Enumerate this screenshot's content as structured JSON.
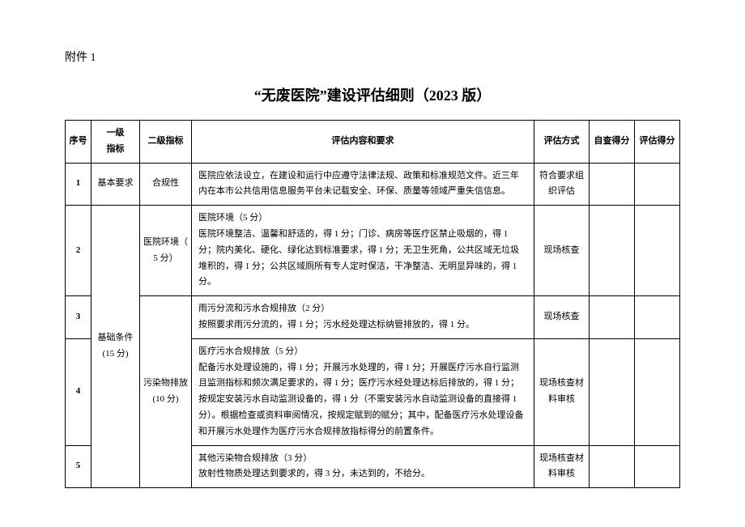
{
  "attachment_label": "附件 1",
  "doc_title": "“无废医院”建设评估细则（2023 版）",
  "headers": {
    "seq": "序号",
    "lvl1": "一级\n指标",
    "lvl2": "二级指标",
    "req": "评估内容和要求",
    "method": "评估方式",
    "self": "自查得分",
    "eval": "评估得分"
  },
  "lvl1": {
    "basic_req": "基本要求",
    "basic_cond": "基础条件\n(15 分)"
  },
  "lvl2": {
    "compliance": "合规性",
    "env": "医院环境（\n5 分）",
    "emission": "污染物排放\n(10 分)"
  },
  "rows": {
    "1": {
      "seq": "1",
      "content": "医院应依法设立，在建设和运行中应遵守法律法规、政策和标准规范文件。近三年内在本市公共信用信息服务平台未记载安全、环保、质量等领域严重失信信息。",
      "method": "符合要求组织评估"
    },
    "2": {
      "seq": "2",
      "content": "医院环境（5 分）\n医院环境整洁、温馨和舒适的，得 1 分；门诊、病房等医疗区禁止吸烟的，得 1 分；院内美化、硬化、绿化达到标准要求，得 1 分；无卫生死角，公共区域无垃圾堆积的，得 1 分；公共区域厕所有专人定时保洁，干净整洁、无明显异味的，得 1 分。",
      "method": "现场核查"
    },
    "3": {
      "seq": "3",
      "content": "雨污分流和污水合规排放（2 分）\n按照要求雨污分流的，得 1 分；污水经处理达标纳管排放的，得 1 分。",
      "method": "现场核查"
    },
    "4": {
      "seq": "4",
      "content": "医疗污水合规排放（5 分）\n配备污水处理设施的，得 1 分；开展污水处理的，得 1 分；开展医疗污水自行监测且监测指标和频次满足要求的，得 1 分；医疗污水经处理达标后排放的，得 1 分；按规定安装污水自动监测设备的，得 1 分（不需安装污水自动监测设备的直接得 1 分）。根据检查或资料审阅情况，按规定赋到的赋分；其中，配备医疗污水处理设备和开展污水处理作为医疗污水合规排放指标得分的前置条件。",
      "method": "现场核查材料审核"
    },
    "5": {
      "seq": "5",
      "content": "其他污染物合规排放（3 分）\n放射性物质处理达到要求的，得 3 分，未达到的，不给分。",
      "method": "现场核查材料审核"
    }
  }
}
